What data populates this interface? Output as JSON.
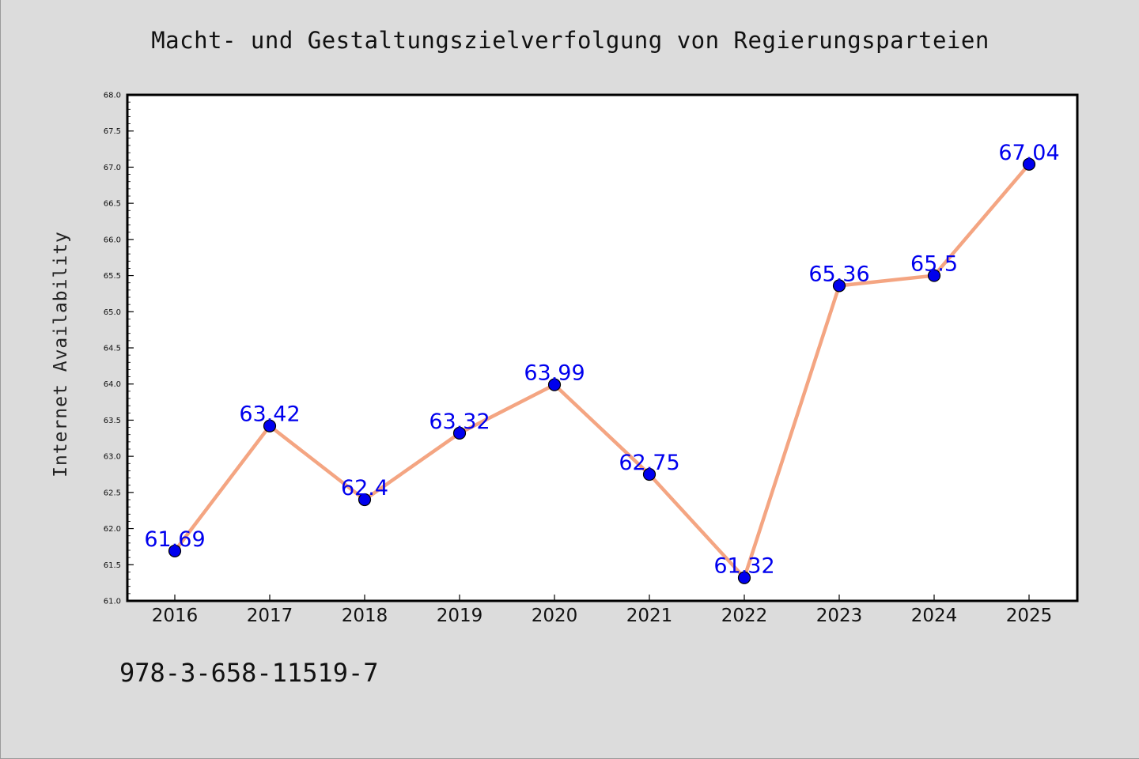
{
  "chart_data": {
    "type": "line",
    "title": "Macht- und Gestaltungszielverfolgung von Regierungsparteien",
    "xlabel": "",
    "ylabel": "Internet Availability",
    "x": [
      "2016",
      "2017",
      "2018",
      "2019",
      "2020",
      "2021",
      "2022",
      "2023",
      "2024",
      "2025"
    ],
    "series": [
      {
        "values": [
          61.69,
          63.42,
          62.4,
          63.32,
          63.99,
          62.75,
          61.32,
          65.36,
          65.5,
          67.04
        ],
        "labels": [
          "61.69",
          "63.42",
          "62.4",
          "63.32",
          "63.99",
          "62.75",
          "61.32",
          "65.36",
          "65.5",
          "67.04"
        ]
      }
    ],
    "ylim": [
      61.0,
      68.0
    ],
    "yticks": [
      "61.0",
      "61.5",
      "62.0",
      "62.5",
      "63.0",
      "63.5",
      "64.0",
      "64.5",
      "65.0",
      "65.5",
      "66.0",
      "66.5",
      "67.0",
      "67.5",
      "68.0"
    ],
    "grid": false,
    "legend": "none",
    "colors": {
      "line": "#f4a582",
      "marker": "#0000ee",
      "data_label": "#0000ee",
      "plot_background": "#ffffff",
      "figure_background": "#dcdcdc"
    }
  },
  "footer": {
    "isbn": "978-3-658-11519-7"
  }
}
